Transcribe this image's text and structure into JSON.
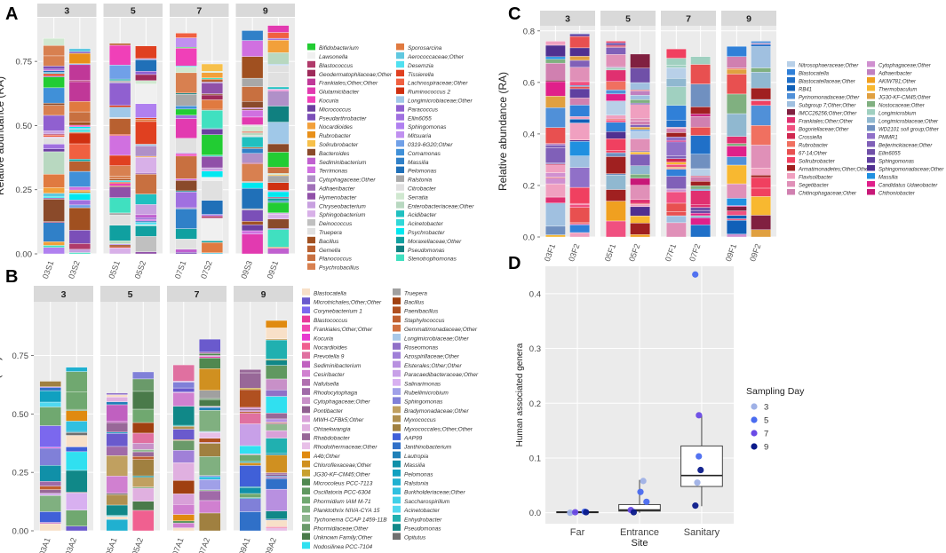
{
  "panels": {
    "A": {
      "label": "A",
      "facets": [
        "3",
        "5",
        "7",
        "9"
      ],
      "samples": [
        [
          "03S1",
          "03S2"
        ],
        [
          "05S1",
          "05S2"
        ],
        [
          "07S1",
          "07S2"
        ],
        [
          "09S3",
          "09S1"
        ]
      ],
      "totals": [
        0.84,
        0.8,
        0.82,
        0.81,
        0.86,
        0.74,
        0.87,
        0.89
      ],
      "ylabel": "Relative abundance (RA)",
      "yticks": [
        "0.00",
        "0.25",
        "0.50",
        "0.75"
      ],
      "ymax": 0.92,
      "legend": [
        {
          "label": "Bifidobacterium",
          "color": "#22cc33"
        },
        {
          "label": "Lawsonella",
          "color": "#f0f0f0"
        },
        {
          "label": "Blastococcus",
          "color": "#b03a6a"
        },
        {
          "label": "Geodermatophilaceae;Other",
          "color": "#9e2a5a"
        },
        {
          "label": "Frankiales;Other;Other",
          "color": "#c03898"
        },
        {
          "label": "Glutamicibacter",
          "color": "#e23ab0"
        },
        {
          "label": "Kocuria",
          "color": "#f040b8"
        },
        {
          "label": "Micrococcus",
          "color": "#6b3fa0"
        },
        {
          "label": "Pseudarthrobacter",
          "color": "#7b4fb8"
        },
        {
          "label": "Nocardioides",
          "color": "#f2a03a"
        },
        {
          "label": "Rubrobacter",
          "color": "#e8901a"
        },
        {
          "label": "Solirubrobacter",
          "color": "#f7c04a"
        },
        {
          "label": "Bacteroides",
          "color": "#8a4a2a"
        },
        {
          "label": "Sediminibacterium",
          "color": "#c060d0"
        },
        {
          "label": "Terrimonas",
          "color": "#d070e0"
        },
        {
          "label": "Cytophagaceae;Other",
          "color": "#b090c8"
        },
        {
          "label": "Adhaeribacter",
          "color": "#a070b8"
        },
        {
          "label": "Hymenobacter",
          "color": "#9050a8"
        },
        {
          "label": "Chryseobacterium",
          "color": "#c8a0e0"
        },
        {
          "label": "Sphingobacterium",
          "color": "#d8b0e8"
        },
        {
          "label": "Deinococcus",
          "color": "#c0c0c0"
        },
        {
          "label": "Truepera",
          "color": "#e0e0e0"
        },
        {
          "label": "Bacillus",
          "color": "#a05020"
        },
        {
          "label": "Gemella",
          "color": "#b86030"
        },
        {
          "label": "Planococcus",
          "color": "#c87040"
        },
        {
          "label": "Psychrobacillus",
          "color": "#d88050"
        },
        {
          "label": "Sporosarcina",
          "color": "#e07a40"
        },
        {
          "label": "Aerococcaceae;Other",
          "color": "#60c8e0"
        },
        {
          "label": "Desemzia",
          "color": "#50e0f0"
        },
        {
          "label": "Tissierella",
          "color": "#e04020"
        },
        {
          "label": "Lachnospiraceae;Other",
          "color": "#f06040"
        },
        {
          "label": "Ruminococcus 2",
          "color": "#d03010"
        },
        {
          "label": "Longimicrobiaceae;Other",
          "color": "#a0c8e8"
        },
        {
          "label": "Paracoccus",
          "color": "#9060d0"
        },
        {
          "label": "Ellin6055",
          "color": "#a070e0"
        },
        {
          "label": "Sphingomonas",
          "color": "#b080f0"
        },
        {
          "label": "Mitsuaria",
          "color": "#c090f0"
        },
        {
          "label": "0319-6G20;Other",
          "color": "#70a0e8"
        },
        {
          "label": "Comamonas",
          "color": "#4090d8"
        },
        {
          "label": "Massilia",
          "color": "#3080c8"
        },
        {
          "label": "Pelomonas",
          "color": "#2070b8"
        },
        {
          "label": "Ralstonia",
          "color": "#a8a8a8"
        },
        {
          "label": "Citrobacter",
          "color": "#e0e0e0"
        },
        {
          "label": "Serratia",
          "color": "#d0e8d0"
        },
        {
          "label": "Enterobacteriaceae;Other",
          "color": "#b8d8c0"
        },
        {
          "label": "Acidibacter",
          "color": "#20c0c0"
        },
        {
          "label": "Acinetobacter",
          "color": "#30d8d8"
        },
        {
          "label": "Psychrobacter",
          "color": "#00e8f0"
        },
        {
          "label": "Moraxellaceae;Other",
          "color": "#10a0a0"
        },
        {
          "label": "Pseudomonas",
          "color": "#108080"
        },
        {
          "label": "Stenotrophomonas",
          "color": "#40e0c0"
        }
      ]
    },
    "B": {
      "label": "B",
      "facets": [
        "3",
        "5",
        "7",
        "9"
      ],
      "samples": [
        [
          "03A1",
          "03A2"
        ],
        [
          "05A1",
          "05A2"
        ],
        [
          "07A1",
          "07A2"
        ],
        [
          "09A1",
          "09A2"
        ]
      ],
      "totals": [
        0.64,
        0.7,
        0.59,
        0.68,
        0.71,
        0.82,
        0.69,
        0.9
      ],
      "ylabel": "Relative abundance (RA)",
      "yticks": [
        "0.00",
        "0.25",
        "0.50",
        "0.75"
      ],
      "ymax": 0.98,
      "legend": [
        {
          "label": "Blastocatella",
          "color": "#f8e0c8"
        },
        {
          "label": "Microtrichales;Other;Other",
          "color": "#6a5acd"
        },
        {
          "label": "Corynebacterium 1",
          "color": "#7b68ee"
        },
        {
          "label": "Blastococcus",
          "color": "#e83a9a"
        },
        {
          "label": "Frankiales;Other;Other",
          "color": "#f048b0"
        },
        {
          "label": "Kocuria",
          "color": "#e83ad0"
        },
        {
          "label": "Nocardioides",
          "color": "#f06090"
        },
        {
          "label": "Prevotella 9",
          "color": "#e070a0"
        },
        {
          "label": "Sediminibacterium",
          "color": "#c060c0"
        },
        {
          "label": "Cesiribacter",
          "color": "#d080d0"
        },
        {
          "label": "Nafulsella",
          "color": "#b070b0"
        },
        {
          "label": "Rhodocytophaga",
          "color": "#a06aa8"
        },
        {
          "label": "Cytophagaceae;Other",
          "color": "#c890c8"
        },
        {
          "label": "Pontibacter",
          "color": "#906090"
        },
        {
          "label": "MWH-CFBk5;Other",
          "color": "#d8a0d8"
        },
        {
          "label": "Ohtaekwangia",
          "color": "#e0b0e0"
        },
        {
          "label": "Rhabdobacter",
          "color": "#986898"
        },
        {
          "label": "Rhodothermaceae;Other",
          "color": "#e8c0e8"
        },
        {
          "label": "A4b;Other",
          "color": "#e08a10"
        },
        {
          "label": "Chloroflexaceae;Other",
          "color": "#d09020"
        },
        {
          "label": "JG30-KF-CM45;Other",
          "color": "#c8a030"
        },
        {
          "label": "Microcoleus PCC-7113",
          "color": "#508850"
        },
        {
          "label": "Oscillatoria PCC-6304",
          "color": "#609860"
        },
        {
          "label": "Phormidium IAM M-71",
          "color": "#70a870"
        },
        {
          "label": "Planktothrix NIVA-CYA 15",
          "color": "#80b080"
        },
        {
          "label": "Tychonema CCAP 1459-11B",
          "color": "#90b890"
        },
        {
          "label": "Phormidiaceae;Other",
          "color": "#6a9a6a"
        },
        {
          "label": "Unknown Family;Other",
          "color": "#4a7a4a"
        },
        {
          "label": "Nodosilinea PCC-7104",
          "color": "#30e0f0"
        },
        {
          "label": "Truepera",
          "color": "#a0a0a0"
        },
        {
          "label": "Bacillus",
          "color": "#a04010"
        },
        {
          "label": "Paenibacillus",
          "color": "#b05020"
        },
        {
          "label": "Staphylococcus",
          "color": "#c06030"
        },
        {
          "label": "Gemmatimonadaceae;Other",
          "color": "#d07040"
        },
        {
          "label": "Longimicrobiaceae;Other",
          "color": "#a8c8e8"
        },
        {
          "label": "Roseomonas",
          "color": "#9070c8"
        },
        {
          "label": "Azospirillaceae;Other",
          "color": "#a080d8"
        },
        {
          "label": "Elsterales;Other;Other",
          "color": "#b890e0"
        },
        {
          "label": "Paracaedibacteraceae;Other",
          "color": "#c8a0e8"
        },
        {
          "label": "Salinarimonas",
          "color": "#d8b0f0"
        },
        {
          "label": "Rubellimicrobium",
          "color": "#a0a0e8"
        },
        {
          "label": "Sphingomonas",
          "color": "#8080d8"
        },
        {
          "label": "Bradymonadaceae;Other",
          "color": "#c0a060"
        },
        {
          "label": "Myxococcus",
          "color": "#b09050"
        },
        {
          "label": "Myxococcales;Other;Other",
          "color": "#a08040"
        },
        {
          "label": "AAP99",
          "color": "#4060d8"
        },
        {
          "label": "Janthinobacterium",
          "color": "#3070c8"
        },
        {
          "label": "Lautropia",
          "color": "#2080b8"
        },
        {
          "label": "Massilia",
          "color": "#1090a8"
        },
        {
          "label": "Pelomonas",
          "color": "#10a0c0"
        },
        {
          "label": "Ralstonia",
          "color": "#20b0d0"
        },
        {
          "label": "Burkholderiaceae;Other",
          "color": "#30c0e0"
        },
        {
          "label": "Saccharospirillum",
          "color": "#40d0e8"
        },
        {
          "label": "Acinetobacter",
          "color": "#50d8f0"
        },
        {
          "label": "Enhydrobacter",
          "color": "#20b0b0"
        },
        {
          "label": "Pseudomonas",
          "color": "#108888"
        },
        {
          "label": "Opitutus",
          "color": "#707070"
        }
      ]
    },
    "C": {
      "label": "C",
      "facets": [
        "3",
        "5",
        "7",
        "9"
      ],
      "samples": [
        [
          "03F1",
          "03F2"
        ],
        [
          "05F1",
          "05F2"
        ],
        [
          "07F1",
          "07F2"
        ],
        [
          "09F1",
          "09F2"
        ]
      ],
      "totals": [
        0.76,
        0.79,
        0.76,
        0.71,
        0.73,
        0.7,
        0.74,
        0.76
      ],
      "ylabel": "Relative abundance (RA)",
      "yticks": [
        "0.0",
        "0.2",
        "0.4",
        "0.6",
        "0.8"
      ],
      "ymax": 0.82,
      "legend": [
        {
          "label": "Nitrosophaeraceae;Other",
          "color": "#b8d0e8"
        },
        {
          "label": "Blastocatella",
          "color": "#3080d8"
        },
        {
          "label": "Blastocatellaceae;Other",
          "color": "#2070c8"
        },
        {
          "label": "RB41",
          "color": "#1060b8"
        },
        {
          "label": "Pyrinomonadaceae;Other",
          "color": "#5090d8"
        },
        {
          "label": "Subgroup 7;Other;Other",
          "color": "#a0c0e0"
        },
        {
          "label": "IMCC26256;Other;Other",
          "color": "#802040"
        },
        {
          "label": "Frankiales;Other;Other",
          "color": "#e03070"
        },
        {
          "label": "Bogoriellaceae;Other",
          "color": "#f05080"
        },
        {
          "label": "Crossiella",
          "color": "#d02850"
        },
        {
          "label": "Rubrobacter",
          "color": "#f07060"
        },
        {
          "label": "67-14;Other",
          "color": "#e85050"
        },
        {
          "label": "Solirubrobacter",
          "color": "#f04060"
        },
        {
          "label": "Armatimonadetes;Other;Other",
          "color": "#a02020"
        },
        {
          "label": "Flavisolibacter",
          "color": "#f0a0c0"
        },
        {
          "label": "Segetibacter",
          "color": "#e090b8"
        },
        {
          "label": "Chitinophagaceae;Other",
          "color": "#d080b0"
        },
        {
          "label": "Cytophagaceae;Other",
          "color": "#d090d0"
        },
        {
          "label": "Adhaeribacter",
          "color": "#c080c0"
        },
        {
          "label": "AKIW781;Other",
          "color": "#f0a020"
        },
        {
          "label": "Thermobaculum",
          "color": "#f8b830"
        },
        {
          "label": "JG30-KF-CM45;Other",
          "color": "#e0a040"
        },
        {
          "label": "Nostocaceae;Other",
          "color": "#80b080"
        },
        {
          "label": "Longimicrobium",
          "color": "#a0d0c0"
        },
        {
          "label": "Longimicrobiaceae;Other",
          "color": "#90b8d0"
        },
        {
          "label": "WD2101 soil group;Other",
          "color": "#7090c0"
        },
        {
          "label": "PMMR1",
          "color": "#9070c8"
        },
        {
          "label": "Beijerinckiaceae;Other",
          "color": "#8060b8"
        },
        {
          "label": "Ellin6055",
          "color": "#7050a8"
        },
        {
          "label": "Sphingomonas",
          "color": "#6040a0"
        },
        {
          "label": "Sphingomonadaceae;Other",
          "color": "#503090"
        },
        {
          "label": "Massilia",
          "color": "#2090e0"
        },
        {
          "label": "Candidatus Udaeobacter",
          "color": "#e0208a"
        },
        {
          "label": "Chthoniobacter",
          "color": "#c81878"
        }
      ]
    },
    "D": {
      "label": "D",
      "ylabel": "Human associated genera",
      "xlabel": "Site",
      "categories": [
        "Far",
        "Entrance",
        "Sanitary"
      ],
      "yticks": [
        "0.0",
        "0.1",
        "0.2",
        "0.3",
        "0.4"
      ],
      "ylim": [
        -0.02,
        0.45
      ],
      "legend_title": "Sampling Day",
      "legend": [
        {
          "label": "3",
          "color": "#9fb1e6"
        },
        {
          "label": "5",
          "color": "#4a6cf0"
        },
        {
          "label": "7",
          "color": "#6a4ae6"
        },
        {
          "label": "9",
          "color": "#0a1a8a"
        }
      ]
    }
  },
  "chart_data": [
    {
      "type": "bar",
      "title": "A",
      "ylabel": "Relative abundance (RA)",
      "ylim": [
        0,
        0.92
      ],
      "categories": [
        "03S1",
        "03S2",
        "05S1",
        "05S2",
        "07S1",
        "07S2",
        "09S3",
        "09S1"
      ],
      "values": [
        0.84,
        0.8,
        0.82,
        0.81,
        0.86,
        0.74,
        0.87,
        0.89
      ]
    },
    {
      "type": "bar",
      "title": "B",
      "ylabel": "Relative abundance (RA)",
      "ylim": [
        0,
        0.98
      ],
      "categories": [
        "03A1",
        "03A2",
        "05A1",
        "05A2",
        "07A1",
        "07A2",
        "09A1",
        "09A2"
      ],
      "values": [
        0.64,
        0.7,
        0.59,
        0.68,
        0.71,
        0.82,
        0.69,
        0.9
      ]
    },
    {
      "type": "bar",
      "title": "C",
      "ylabel": "Relative abundance (RA)",
      "ylim": [
        0,
        0.82
      ],
      "categories": [
        "03F1",
        "03F2",
        "05F1",
        "05F2",
        "07F1",
        "07F2",
        "09F1",
        "09F2"
      ],
      "values": [
        0.76,
        0.79,
        0.76,
        0.71,
        0.73,
        0.7,
        0.74,
        0.76
      ]
    },
    {
      "type": "scatter",
      "title": "D",
      "xlabel": "Site",
      "ylabel": "Human associated genera",
      "ylim": [
        -0.02,
        0.45
      ],
      "categories": [
        "Far",
        "Entrance",
        "Sanitary"
      ],
      "boxes": [
        {
          "category": "Far",
          "q1": 0.0,
          "median": 0.001,
          "q3": 0.002,
          "whisker_low": 0.0,
          "whisker_high": 0.003
        },
        {
          "category": "Entrance",
          "q1": 0.003,
          "median": 0.005,
          "q3": 0.015,
          "whisker_low": 0.0,
          "whisker_high": 0.06
        },
        {
          "category": "Sanitary",
          "q1": 0.048,
          "median": 0.068,
          "q3": 0.122,
          "whisker_low": 0.012,
          "whisker_high": 0.178
        }
      ],
      "series": [
        {
          "name": "3",
          "points": [
            [
              "Far",
              0.0
            ],
            [
              "Entrance",
              0.058
            ],
            [
              "Sanitary",
              0.055
            ]
          ]
        },
        {
          "name": "5",
          "points": [
            [
              "Far",
              0.002
            ],
            [
              "Entrance",
              0.038
            ],
            [
              "Entrance",
              0.02
            ],
            [
              "Sanitary",
              0.103
            ],
            [
              "Sanitary",
              0.435
            ]
          ]
        },
        {
          "name": "7",
          "points": [
            [
              "Far",
              0.001
            ],
            [
              "Entrance",
              0.005
            ],
            [
              "Sanitary",
              0.178
            ]
          ]
        },
        {
          "name": "9",
          "points": [
            [
              "Far",
              0.001
            ],
            [
              "Entrance",
              0.001
            ],
            [
              "Sanitary",
              0.078
            ],
            [
              "Sanitary",
              0.013
            ]
          ]
        }
      ]
    }
  ]
}
